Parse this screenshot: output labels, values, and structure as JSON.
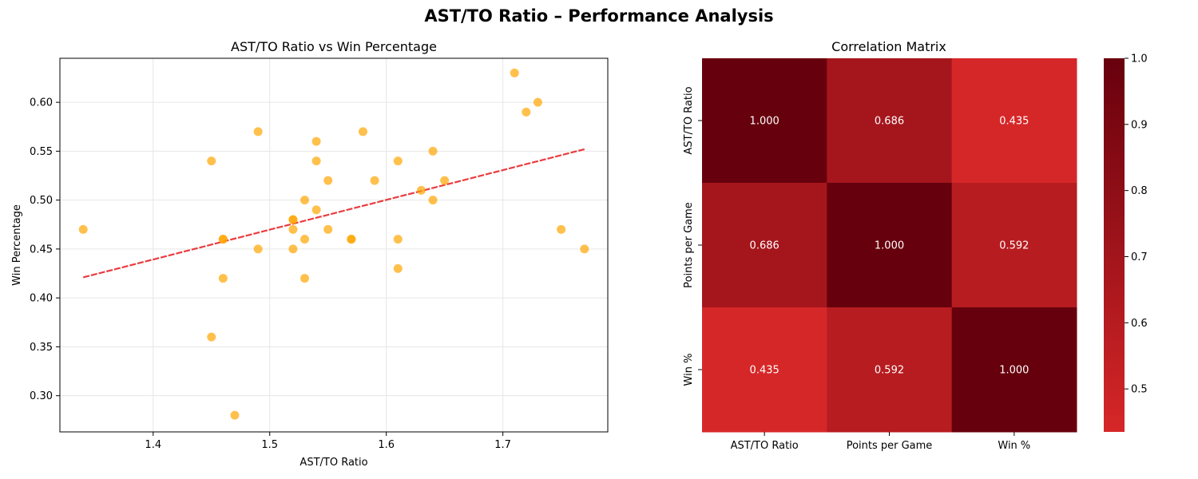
{
  "suptitle": "AST/TO Ratio – Performance Analysis",
  "chart_data": [
    {
      "type": "scatter",
      "title": "AST/TO Ratio vs Win Percentage",
      "xlabel": "AST/TO Ratio",
      "ylabel": "Win Percentage",
      "xlim": [
        1.32,
        1.79
      ],
      "ylim": [
        0.263,
        0.645
      ],
      "xticks": [
        1.4,
        1.5,
        1.6,
        1.7
      ],
      "yticks": [
        0.3,
        0.35,
        0.4,
        0.45,
        0.5,
        0.55,
        0.6
      ],
      "grid": true,
      "point_color": "#FFA500",
      "trend_color": "#E8282B",
      "points": [
        [
          1.34,
          0.47
        ],
        [
          1.45,
          0.54
        ],
        [
          1.45,
          0.36
        ],
        [
          1.46,
          0.46
        ],
        [
          1.46,
          0.46
        ],
        [
          1.46,
          0.42
        ],
        [
          1.47,
          0.28
        ],
        [
          1.49,
          0.57
        ],
        [
          1.49,
          0.45
        ],
        [
          1.52,
          0.48
        ],
        [
          1.52,
          0.48
        ],
        [
          1.52,
          0.47
        ],
        [
          1.52,
          0.45
        ],
        [
          1.53,
          0.5
        ],
        [
          1.53,
          0.46
        ],
        [
          1.53,
          0.42
        ],
        [
          1.54,
          0.56
        ],
        [
          1.54,
          0.54
        ],
        [
          1.54,
          0.49
        ],
        [
          1.55,
          0.52
        ],
        [
          1.55,
          0.47
        ],
        [
          1.57,
          0.46
        ],
        [
          1.57,
          0.46
        ],
        [
          1.58,
          0.57
        ],
        [
          1.59,
          0.52
        ],
        [
          1.61,
          0.54
        ],
        [
          1.61,
          0.46
        ],
        [
          1.61,
          0.43
        ],
        [
          1.63,
          0.51
        ],
        [
          1.64,
          0.55
        ],
        [
          1.64,
          0.5
        ],
        [
          1.65,
          0.52
        ],
        [
          1.71,
          0.63
        ],
        [
          1.72,
          0.59
        ],
        [
          1.73,
          0.6
        ],
        [
          1.75,
          0.47
        ],
        [
          1.77,
          0.45
        ]
      ],
      "trend": {
        "x": [
          1.34,
          1.77
        ],
        "y": [
          0.421,
          0.552
        ]
      }
    },
    {
      "type": "heatmap",
      "title": "Correlation Matrix",
      "labels": [
        "AST/TO Ratio",
        "Points per Game",
        "Win %"
      ],
      "matrix": [
        [
          1.0,
          0.686,
          0.435
        ],
        [
          0.686,
          1.0,
          0.592
        ],
        [
          0.435,
          0.592,
          1.0
        ]
      ],
      "cell_labels": [
        [
          "1.000",
          "0.686",
          "0.435"
        ],
        [
          "0.686",
          "1.000",
          "0.592"
        ],
        [
          "0.435",
          "0.592",
          "1.000"
        ]
      ],
      "colorbar": {
        "range": [
          0.435,
          1.0
        ],
        "ticks": [
          0.5,
          0.6,
          0.7,
          0.8,
          0.9,
          1.0
        ],
        "tick_labels": [
          "0.5",
          "0.6",
          "0.7",
          "0.8",
          "0.9",
          "1.0"
        ],
        "color_low": "#D62728",
        "color_high": "#67000D"
      }
    }
  ]
}
